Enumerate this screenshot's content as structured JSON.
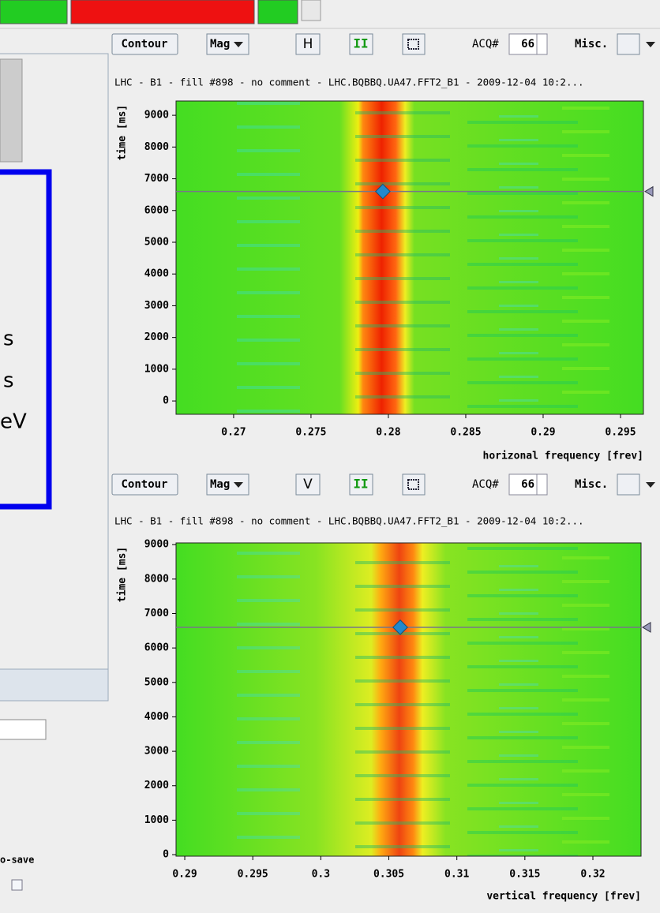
{
  "left_panel": {
    "line_1": "s",
    "line_2": "s",
    "line_3": "eV",
    "auto_save": "o-save"
  },
  "panels": [
    {
      "toolbar": {
        "contour": "Contour",
        "mode": "Mag",
        "plane": "H",
        "pause": "II",
        "acq_label": "ACQ#",
        "acq": "66",
        "misc": "Misc."
      },
      "subtitle": "LHC - B1 - fill #898 - no comment - LHC.BQBBQ.UA47.FFT2_B1 - 2009-12-04 10:2...",
      "ylabel": "time [ms]",
      "xlabel": "horizonal frequency [frev]",
      "xlim": [
        0.26628,
        0.29648
      ],
      "ylim": [
        -420,
        9450
      ],
      "xticks": [
        0.27,
        0.275,
        0.28,
        0.285,
        0.29,
        0.295
      ],
      "yticks": [
        0,
        1000,
        2000,
        3000,
        4000,
        5000,
        6000,
        7000,
        8000,
        9000
      ],
      "cursor": {
        "x": 0.27964,
        "y": 6600
      }
    },
    {
      "toolbar": {
        "contour": "Contour",
        "mode": "Mag",
        "plane": "V",
        "pause": "II",
        "acq_label": "ACQ#",
        "acq": "66",
        "misc": "Misc."
      },
      "subtitle": "LHC - B1 - fill #898 - no comment - LHC.BQBBQ.UA47.FFT2_B1 - 2009-12-04 10:2...",
      "ylabel": "time [ms]",
      "xlabel": "vertical frequency [frev]",
      "xlim": [
        0.28936,
        0.32354
      ],
      "ylim": [
        -45,
        9050
      ],
      "xticks": [
        0.29,
        0.295,
        0.3,
        0.305,
        0.31,
        0.315,
        0.32
      ],
      "yticks": [
        0,
        1000,
        2000,
        3000,
        4000,
        5000,
        6000,
        7000,
        8000,
        9000
      ],
      "cursor": {
        "x": 0.30584,
        "y": 6600
      }
    }
  ]
}
